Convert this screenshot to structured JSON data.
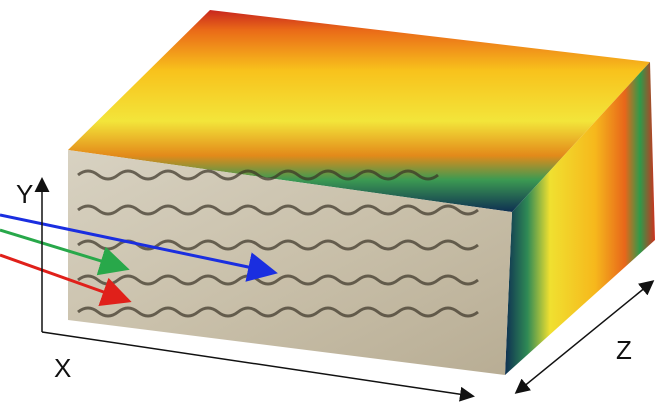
{
  "axes": {
    "y": "Y",
    "x": "X",
    "z": "Z"
  }
}
